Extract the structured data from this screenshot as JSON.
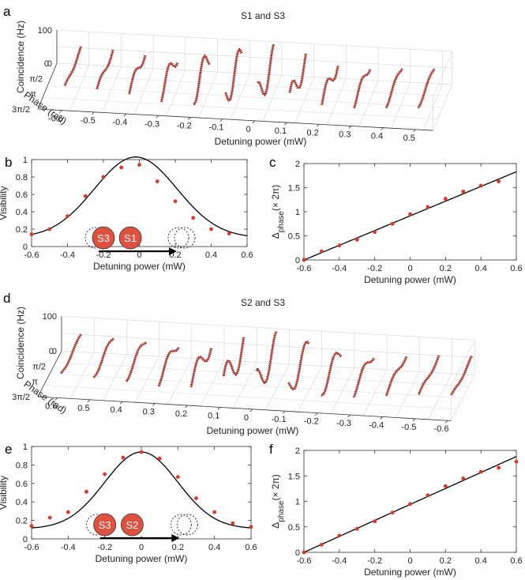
{
  "panel_labels": {
    "a": "a",
    "b": "b",
    "c": "c",
    "d": "d",
    "e": "e",
    "f": "f"
  },
  "chart_data": [
    {
      "id": "a",
      "type": "line",
      "dimension": "3d",
      "title": "S1 and S3",
      "xlabel": "Detuning power (mW)",
      "ylabel": "Phase (rad)",
      "zlabel": "Coincidence (Hz)",
      "x": [
        -0.6,
        -0.5,
        -0.4,
        -0.3,
        -0.2,
        -0.1,
        0,
        0.1,
        0.2,
        0.3,
        0.4,
        0.5
      ],
      "x_ticks": [
        "-0.6",
        "-0.5",
        "-0.4",
        "-0.3",
        "-0.2",
        "-0.1",
        "0",
        "0.1",
        "0.2",
        "0.3",
        "0.4",
        "0.5"
      ],
      "y_ticks": [
        "0",
        "π/2",
        "π",
        "3π/2"
      ],
      "z_ticks": [
        "0",
        "100"
      ],
      "zlim": [
        0,
        100
      ],
      "amplitude": [
        0.14,
        0.2,
        0.35,
        0.58,
        0.8,
        0.91,
        0.94,
        0.75,
        0.52,
        0.33,
        0.2,
        0.15
      ],
      "phase_cycles": [
        0.0,
        0.18,
        0.3,
        0.42,
        0.58,
        0.75,
        0.95,
        1.1,
        1.27,
        1.42,
        1.54,
        1.63
      ],
      "series": [
        {
          "name": "data",
          "color": "#e0362a"
        },
        {
          "name": "fit",
          "color": "#000000"
        }
      ]
    },
    {
      "id": "b",
      "type": "scatter",
      "xlabel": "Detuning power (mW)",
      "ylabel": "Visibility",
      "xlim": [
        -0.6,
        0.6
      ],
      "ylim": [
        0,
        1
      ],
      "x_ticks": [
        "-0.6",
        "-0.4",
        "-0.2",
        "0",
        "0.2",
        "0.4",
        "0.6"
      ],
      "y_ticks": [
        "0",
        "0.2",
        "0.4",
        "0.6",
        "0.8",
        "1"
      ],
      "x": [
        -0.6,
        -0.5,
        -0.4,
        -0.3,
        -0.2,
        -0.1,
        0,
        0.1,
        0.2,
        0.3,
        0.4,
        0.5
      ],
      "values": [
        0.14,
        0.2,
        0.35,
        0.58,
        0.8,
        0.91,
        0.94,
        0.75,
        0.52,
        0.33,
        0.2,
        0.15
      ],
      "fit": {
        "type": "gaussian",
        "peak": 0.93,
        "center": -0.02,
        "sigma": 0.23,
        "offset": 0.1
      },
      "marker_color": "#e0362a",
      "inset": {
        "left_label": "S3",
        "right_label": "S1"
      }
    },
    {
      "id": "c",
      "type": "scatter",
      "xlabel": "Detuning power (mW)",
      "ylabel": "Δphase(× 2π)",
      "xlim": [
        -0.6,
        0.6
      ],
      "ylim": [
        0,
        2
      ],
      "x_ticks": [
        "-0.6",
        "-0.4",
        "-0.2",
        "0",
        "0.2",
        "0.4",
        "0.6"
      ],
      "y_ticks": [
        "0",
        "0.5",
        "1",
        "1.5",
        "2"
      ],
      "x": [
        -0.6,
        -0.5,
        -0.4,
        -0.3,
        -0.2,
        -0.1,
        0,
        0.1,
        0.2,
        0.3,
        0.4,
        0.5
      ],
      "values": [
        0.0,
        0.18,
        0.3,
        0.42,
        0.58,
        0.75,
        0.95,
        1.1,
        1.27,
        1.42,
        1.54,
        1.63
      ],
      "fit": {
        "type": "linear",
        "x0": -0.6,
        "y0": 0.0,
        "x1": 0.6,
        "y1": 1.83
      },
      "marker_color": "#e0362a"
    },
    {
      "id": "d",
      "type": "line",
      "dimension": "3d",
      "title": "S2 and S3",
      "xlabel": "Detuning power (mW)",
      "ylabel": "Phase (rad)",
      "zlabel": "Coincidence (Hz)",
      "x": [
        0.6,
        0.5,
        0.4,
        0.3,
        0.2,
        0.1,
        0,
        -0.1,
        -0.2,
        -0.3,
        -0.4,
        -0.5,
        -0.6
      ],
      "x_ticks": [
        "0.6",
        "0.5",
        "0.4",
        "0.3",
        "0.2",
        "0.1",
        "0",
        "-0.1",
        "-0.2",
        "-0.3",
        "-0.4",
        "-0.5",
        "-0.6"
      ],
      "y_ticks": [
        "0",
        "π/2",
        "π",
        "3π/2"
      ],
      "z_ticks": [
        "0",
        "100"
      ],
      "zlim": [
        0,
        100
      ],
      "amplitude": [
        0.13,
        0.22,
        0.28,
        0.38,
        0.6,
        0.93,
        0.92,
        0.75,
        0.55,
        0.35,
        0.2,
        0.14,
        0.13
      ],
      "phase_cycles": [
        1.78,
        1.65,
        1.58,
        1.45,
        1.29,
        1.12,
        0.95,
        0.77,
        0.6,
        0.45,
        0.33,
        0.15,
        0.0
      ],
      "series": [
        {
          "name": "data",
          "color": "#e0362a"
        },
        {
          "name": "fit",
          "color": "#000000"
        }
      ]
    },
    {
      "id": "e",
      "type": "scatter",
      "xlabel": "Detuning power (mW)",
      "ylabel": "Visibility",
      "xlim": [
        -0.6,
        0.6
      ],
      "ylim": [
        0,
        1
      ],
      "x_ticks": [
        "-0.6",
        "-0.4",
        "-0.2",
        "0",
        "0.2",
        "0.4",
        "0.6"
      ],
      "y_ticks": [
        "0",
        "0.2",
        "0.4",
        "0.6",
        "0.8",
        "1"
      ],
      "x": [
        -0.6,
        -0.5,
        -0.4,
        -0.3,
        -0.2,
        -0.1,
        0,
        0.1,
        0.2,
        0.3,
        0.4,
        0.5,
        0.6
      ],
      "values": [
        0.14,
        0.23,
        0.29,
        0.51,
        0.7,
        0.88,
        0.94,
        0.87,
        0.67,
        0.44,
        0.29,
        0.17,
        0.13
      ],
      "fit": {
        "type": "gaussian",
        "peak": 0.83,
        "center": 0.0,
        "sigma": 0.2,
        "offset": 0.11
      },
      "marker_color": "#e0362a",
      "inset": {
        "left_label": "S3",
        "right_label": "S2"
      }
    },
    {
      "id": "f",
      "type": "scatter",
      "xlabel": "Detuning power (mW)",
      "ylabel": "Δphase(× 2π)",
      "xlim": [
        -0.6,
        0.6
      ],
      "ylim": [
        0,
        2
      ],
      "x_ticks": [
        "-0.6",
        "-0.4",
        "-0.2",
        "0",
        "0.2",
        "0.4",
        "0.6"
      ],
      "y_ticks": [
        "0",
        "0.5",
        "1",
        "1.5",
        "2"
      ],
      "x": [
        -0.6,
        -0.5,
        -0.4,
        -0.3,
        -0.2,
        -0.1,
        0,
        0.1,
        0.2,
        0.3,
        0.4,
        0.5,
        0.6
      ],
      "values": [
        0.0,
        0.15,
        0.33,
        0.46,
        0.61,
        0.78,
        0.95,
        1.12,
        1.3,
        1.45,
        1.58,
        1.66,
        1.78
      ],
      "fit": {
        "type": "linear",
        "x0": -0.6,
        "y0": 0.0,
        "x1": 0.6,
        "y1": 1.88
      },
      "marker_color": "#e0362a"
    }
  ]
}
